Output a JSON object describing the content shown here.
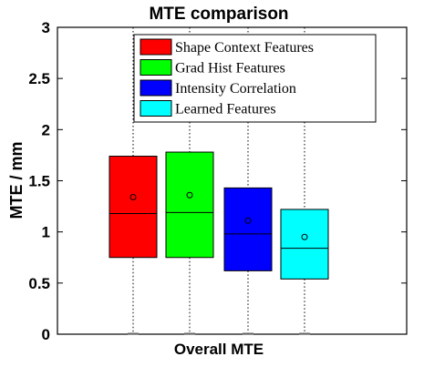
{
  "chart_data": {
    "type": "boxplot",
    "title": "MTE comparison",
    "ylabel": "MTE / mm",
    "xlabel": "",
    "categories": [
      "Overall MTE"
    ],
    "ylim": [
      0,
      3
    ],
    "yticks": [
      "0",
      "0.5",
      "1",
      "1.5",
      "2",
      "2.5",
      "3"
    ],
    "grid": false,
    "legend_position": "top-right",
    "series": [
      {
        "name": "Shape Context Features",
        "color": "#ff0000",
        "min": 0.0,
        "q1": 0.75,
        "median": 1.18,
        "q3": 1.74,
        "max": 3.0,
        "mean": 1.34
      },
      {
        "name": "Grad Hist Features",
        "color": "#00ff00",
        "min": 0.0,
        "q1": 0.75,
        "median": 1.19,
        "q3": 1.78,
        "max": 3.0,
        "mean": 1.36
      },
      {
        "name": "Intensity Correlation",
        "color": "#0000ff",
        "min": 0.0,
        "q1": 0.62,
        "median": 0.98,
        "q3": 1.43,
        "max": 3.0,
        "mean": 1.11
      },
      {
        "name": "Learned Features",
        "color": "#00ffff",
        "min": 0.0,
        "q1": 0.54,
        "median": 0.84,
        "q3": 1.22,
        "max": 3.0,
        "mean": 0.95
      }
    ]
  }
}
